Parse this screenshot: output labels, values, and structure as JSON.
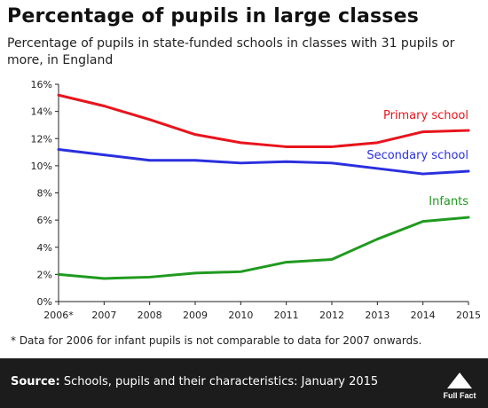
{
  "header": {
    "title": "Percentage of pupils in large classes",
    "subtitle": "Percentage of pupils in state-funded schools in classes with 31 pupils or more, in England"
  },
  "footnote": "* Data for 2006 for infant pupils is not comparable to data for 2007 onwards.",
  "footer": {
    "source_label": "Source:",
    "source_text": " Schools, pupils and their characteristics: January 2015",
    "logo_text": "Full Fact"
  },
  "chart_data": {
    "type": "line",
    "categories": [
      "2006*",
      "2007",
      "2008",
      "2009",
      "2010",
      "2011",
      "2012",
      "2013",
      "2014",
      "2015"
    ],
    "yticks": [
      "0%",
      "2%",
      "4%",
      "6%",
      "8%",
      "10%",
      "12%",
      "14%",
      "16%"
    ],
    "ylim": [
      0,
      16
    ],
    "grid": false,
    "series": [
      {
        "name": "Primary school",
        "color": "#e8141c",
        "values": [
          15.2,
          14.4,
          13.4,
          12.3,
          11.7,
          11.4,
          11.4,
          11.7,
          12.5,
          12.6
        ]
      },
      {
        "name": "Secondary school",
        "color": "#2a2fde",
        "values": [
          11.2,
          10.8,
          10.4,
          10.4,
          10.2,
          10.3,
          10.2,
          9.8,
          9.4,
          9.6
        ]
      },
      {
        "name": "Infants",
        "color": "#1f9a1f",
        "values": [
          2.0,
          1.7,
          1.8,
          2.1,
          2.2,
          2.9,
          3.1,
          4.6,
          5.9,
          6.2
        ]
      }
    ]
  }
}
